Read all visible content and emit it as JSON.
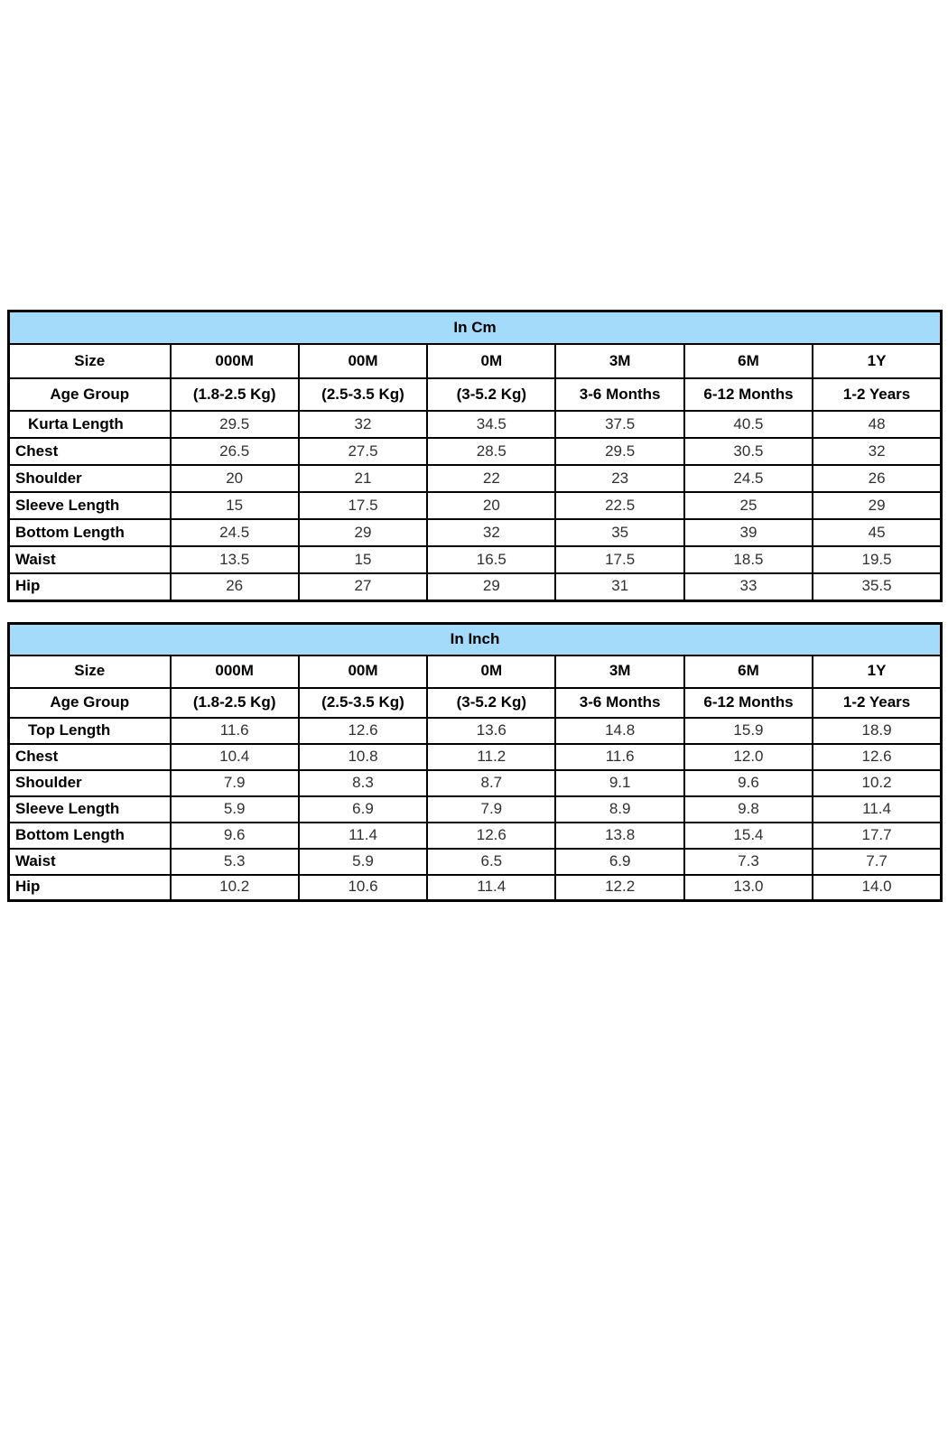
{
  "page": {
    "background": "#ffffff"
  },
  "colors": {
    "title_band_blue": "#A5DBFA",
    "border_black": "#000000",
    "label_text": "#000000",
    "value_text": "#303030"
  },
  "tables": [
    {
      "title": "In Cm",
      "size_row_label": "Size",
      "age_row_label": "Age Group",
      "columns": [
        "000M",
        "00M",
        "0M",
        "3M",
        "6M",
        "1Y"
      ],
      "age_groups": [
        "(1.8-2.5 Kg)",
        "(2.5-3.5 Kg)",
        "(3-5.2 Kg)",
        "3-6 Months",
        "6-12 Months",
        "1-2 Years"
      ],
      "rows": [
        {
          "label": "Kurta Length",
          "indent": true,
          "values": [
            "29.5",
            "32",
            "34.5",
            "37.5",
            "40.5",
            "48"
          ]
        },
        {
          "label": "Chest",
          "indent": false,
          "values": [
            "26.5",
            "27.5",
            "28.5",
            "29.5",
            "30.5",
            "32"
          ]
        },
        {
          "label": "Shoulder",
          "indent": false,
          "values": [
            "20",
            "21",
            "22",
            "23",
            "24.5",
            "26"
          ]
        },
        {
          "label": "Sleeve Length",
          "indent": false,
          "values": [
            "15",
            "17.5",
            "20",
            "22.5",
            "25",
            "29"
          ]
        },
        {
          "label": "Bottom Length",
          "indent": false,
          "values": [
            "24.5",
            "29",
            "32",
            "35",
            "39",
            "45"
          ]
        },
        {
          "label": "Waist",
          "indent": false,
          "values": [
            "13.5",
            "15",
            "16.5",
            "17.5",
            "18.5",
            "19.5"
          ]
        },
        {
          "label": "Hip",
          "indent": false,
          "values": [
            "26",
            "27",
            "29",
            "31",
            "33",
            "35.5"
          ]
        }
      ]
    },
    {
      "title": "In Inch",
      "size_row_label": "Size",
      "age_row_label": "Age Group",
      "columns": [
        "000M",
        "00M",
        "0M",
        "3M",
        "6M",
        "1Y"
      ],
      "age_groups": [
        "(1.8-2.5 Kg)",
        "(2.5-3.5 Kg)",
        "(3-5.2 Kg)",
        "3-6 Months",
        "6-12 Months",
        "1-2 Years"
      ],
      "rows": [
        {
          "label": "Top Length",
          "indent": true,
          "values": [
            "11.6",
            "12.6",
            "13.6",
            "14.8",
            "15.9",
            "18.9"
          ]
        },
        {
          "label": "Chest",
          "indent": false,
          "values": [
            "10.4",
            "10.8",
            "11.2",
            "11.6",
            "12.0",
            "12.6"
          ]
        },
        {
          "label": "Shoulder",
          "indent": false,
          "values": [
            "7.9",
            "8.3",
            "8.7",
            "9.1",
            "9.6",
            "10.2"
          ]
        },
        {
          "label": "Sleeve Length",
          "indent": false,
          "values": [
            "5.9",
            "6.9",
            "7.9",
            "8.9",
            "9.8",
            "11.4"
          ]
        },
        {
          "label": "Bottom Length",
          "indent": false,
          "values": [
            "9.6",
            "11.4",
            "12.6",
            "13.8",
            "15.4",
            "17.7"
          ]
        },
        {
          "label": "Waist",
          "indent": false,
          "values": [
            "5.3",
            "5.9",
            "6.5",
            "6.9",
            "7.3",
            "7.7"
          ]
        },
        {
          "label": "Hip",
          "indent": false,
          "values": [
            "10.2",
            "10.6",
            "11.4",
            "12.2",
            "13.0",
            "14.0"
          ]
        }
      ]
    }
  ]
}
